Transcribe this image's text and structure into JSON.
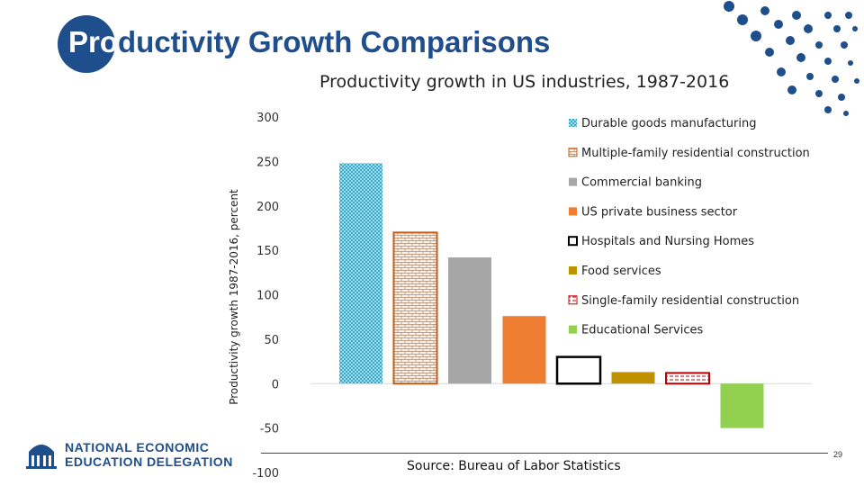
{
  "slide": {
    "title_prefix": "Pro",
    "title_rest": "ductivity Growth Comparisons",
    "source": "Source: Bureau of Labor Statistics",
    "page_number": "29",
    "logo_line1": "NATIONAL ECONOMIC",
    "logo_line2": "EDUCATION DELEGATION",
    "brand_color": "#1f4e8c"
  },
  "chart_data": {
    "type": "bar",
    "title": "Productivity growth in US industries, 1987-2016",
    "ylabel": "Productivity growth 1987-2016, percent",
    "ylim": [
      -100,
      300
    ],
    "yticks": [
      300,
      250,
      200,
      150,
      100,
      50,
      0,
      -50,
      -100
    ],
    "legend_position": "right",
    "grid": false,
    "categories": [
      "Durable goods manufacturing",
      "Multiple-family residential construction",
      "Commercial banking",
      "US private business sector",
      "Hospitals and Nursing Homes",
      "Food services",
      "Single-family residential construction",
      "Educational Services"
    ],
    "values": [
      248,
      170,
      142,
      76,
      30,
      13,
      12,
      -50
    ],
    "colors": [
      "#5bc0de",
      "#c55a11",
      "#a6a6a6",
      "#ed7d31",
      "#000000",
      "#bf9000",
      "#c00000",
      "#92d050"
    ],
    "styles": [
      "dotted",
      "brick",
      "solid",
      "solid",
      "outline",
      "solid",
      "dashed",
      "solid"
    ]
  }
}
